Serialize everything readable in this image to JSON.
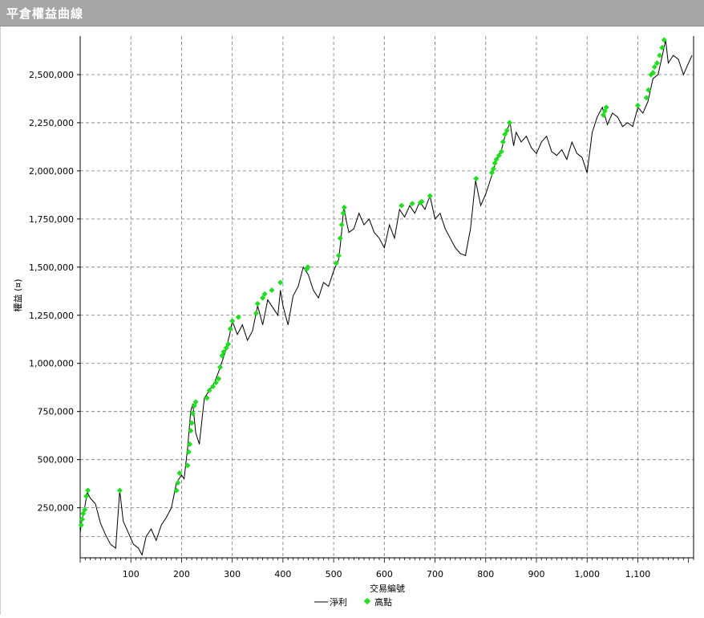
{
  "window": {
    "title": "平倉權益曲線"
  },
  "colors": {
    "titlebar": "#a6a6a6",
    "line": "#000000",
    "highs": "#22dd22",
    "grid": "#777777"
  },
  "chart_data": {
    "type": "line",
    "title": "",
    "xlabel": "交易編號",
    "ylabel": "權益 (¤)",
    "xlim": [
      0,
      1210
    ],
    "ylim": [
      -10000,
      2700000
    ],
    "xticks": [
      100,
      200,
      300,
      400,
      500,
      600,
      700,
      800,
      900,
      1000,
      1100
    ],
    "xtick_labels": [
      "100",
      "200",
      "300",
      "400",
      "500",
      "600",
      "700",
      "800",
      "900",
      "1,000",
      "1,100"
    ],
    "yticks": [
      250000,
      500000,
      750000,
      1000000,
      1250000,
      1500000,
      1750000,
      2000000,
      2250000,
      2500000
    ],
    "ytick_labels": [
      "250,000",
      "500,000",
      "750,000",
      "1,000,000",
      "1,250,000",
      "1,500,000",
      "1,750,000",
      "2,000,000",
      "2,250,000",
      "2,500,000"
    ],
    "grid": true,
    "legend": {
      "position": "bottom",
      "entries": [
        "淨利",
        "高點"
      ]
    },
    "series": [
      {
        "name": "淨利",
        "style": "line",
        "x": [
          0,
          3,
          8,
          14,
          20,
          30,
          40,
          50,
          60,
          70,
          78,
          85,
          95,
          105,
          115,
          122,
          130,
          140,
          150,
          160,
          170,
          180,
          190,
          200,
          205,
          212,
          218,
          222,
          228,
          235,
          240,
          245,
          255,
          265,
          275,
          285,
          295,
          300,
          310,
          320,
          330,
          340,
          350,
          360,
          370,
          380,
          390,
          395,
          400,
          410,
          420,
          430,
          440,
          450,
          460,
          470,
          480,
          490,
          500,
          510,
          515,
          520,
          525,
          530,
          540,
          550,
          560,
          570,
          580,
          590,
          600,
          610,
          620,
          630,
          640,
          650,
          660,
          670,
          680,
          690,
          700,
          710,
          720,
          730,
          740,
          750,
          760,
          770,
          780,
          790,
          800,
          810,
          815,
          820,
          830,
          840,
          848,
          855,
          860,
          870,
          880,
          890,
          900,
          910,
          920,
          930,
          940,
          950,
          960,
          970,
          980,
          990,
          1000,
          1010,
          1020,
          1030,
          1040,
          1050,
          1060,
          1070,
          1080,
          1090,
          1100,
          1110,
          1120,
          1130,
          1140,
          1150,
          1155,
          1160,
          1170,
          1180,
          1190,
          1200,
          1207
        ],
        "y": [
          120000,
          180000,
          240000,
          330000,
          300000,
          270000,
          170000,
          110000,
          60000,
          40000,
          340000,
          180000,
          120000,
          60000,
          40000,
          5000,
          100000,
          140000,
          80000,
          160000,
          200000,
          250000,
          380000,
          420000,
          400000,
          560000,
          750000,
          790000,
          640000,
          580000,
          700000,
          820000,
          860000,
          900000,
          970000,
          1050000,
          1150000,
          1220000,
          1150000,
          1200000,
          1120000,
          1170000,
          1300000,
          1200000,
          1330000,
          1290000,
          1250000,
          1380000,
          1300000,
          1200000,
          1350000,
          1400000,
          1500000,
          1460000,
          1380000,
          1340000,
          1420000,
          1400000,
          1480000,
          1540000,
          1660000,
          1820000,
          1740000,
          1680000,
          1700000,
          1780000,
          1720000,
          1750000,
          1680000,
          1650000,
          1600000,
          1720000,
          1650000,
          1800000,
          1760000,
          1820000,
          1780000,
          1840000,
          1800000,
          1870000,
          1750000,
          1780000,
          1700000,
          1650000,
          1600000,
          1570000,
          1560000,
          1700000,
          1950000,
          1820000,
          1880000,
          1960000,
          2000000,
          2050000,
          2100000,
          2200000,
          2250000,
          2130000,
          2200000,
          2150000,
          2180000,
          2120000,
          2090000,
          2150000,
          2180000,
          2100000,
          2080000,
          2110000,
          2060000,
          2150000,
          2090000,
          2070000,
          1990000,
          2200000,
          2280000,
          2330000,
          2240000,
          2300000,
          2280000,
          2230000,
          2250000,
          2230000,
          2330000,
          2300000,
          2360000,
          2480000,
          2500000,
          2620000,
          2680000,
          2560000,
          2600000,
          2580000,
          2500000,
          2560000,
          2600000
        ]
      },
      {
        "name": "高點",
        "style": "markers",
        "x": [
          2,
          4,
          6,
          9,
          12,
          15,
          78,
          190,
          193,
          196,
          212,
          214,
          216,
          218,
          220,
          222,
          225,
          228,
          250,
          255,
          262,
          268,
          273,
          276,
          280,
          283,
          288,
          292,
          296,
          300,
          312,
          347,
          350,
          360,
          364,
          378,
          395,
          447,
          449,
          505,
          510,
          513,
          516,
          519,
          521,
          634,
          655,
          671,
          674,
          690,
          781,
          812,
          815,
          818,
          821,
          826,
          831,
          834,
          838,
          842,
          847,
          1032,
          1035,
          1038,
          1100,
          1117,
          1121,
          1126,
          1130,
          1133,
          1138,
          1143,
          1148,
          1152
        ],
        "y": [
          160000,
          190000,
          220000,
          240000,
          310000,
          340000,
          340000,
          340000,
          380000,
          430000,
          470000,
          540000,
          580000,
          650000,
          690000,
          740000,
          780000,
          800000,
          820000,
          860000,
          880000,
          900000,
          920000,
          980000,
          1040000,
          1060000,
          1080000,
          1100000,
          1180000,
          1220000,
          1240000,
          1260000,
          1310000,
          1340000,
          1360000,
          1380000,
          1420000,
          1490000,
          1500000,
          1520000,
          1560000,
          1650000,
          1720000,
          1780000,
          1810000,
          1820000,
          1830000,
          1835000,
          1840000,
          1870000,
          1960000,
          1990000,
          2010000,
          2040000,
          2060000,
          2080000,
          2100000,
          2150000,
          2190000,
          2210000,
          2250000,
          2290000,
          2310000,
          2330000,
          2340000,
          2380000,
          2420000,
          2500000,
          2510000,
          2540000,
          2560000,
          2600000,
          2640000,
          2680000
        ]
      }
    ]
  }
}
